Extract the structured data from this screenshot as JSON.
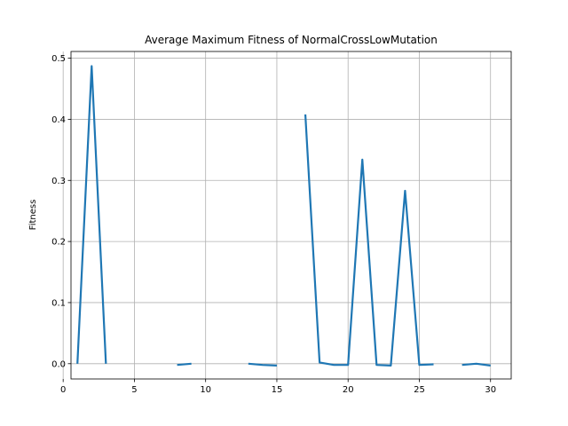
{
  "chart_data": {
    "type": "line",
    "title": "Average Maximum Fitness of NormalCrossLowMutation",
    "xlabel": "",
    "ylabel": "Fitness",
    "xlim": [
      0.55,
      31.45
    ],
    "ylim": [
      -0.025,
      0.511
    ],
    "xticks": [
      0,
      5,
      10,
      15,
      20,
      25,
      30
    ],
    "yticks": [
      0.0,
      0.1,
      0.2,
      0.3,
      0.4,
      0.5
    ],
    "ytick_labels": [
      "0.0",
      "0.1",
      "0.2",
      "0.3",
      "0.4",
      "0.5"
    ],
    "grid": true,
    "line_color": "#1f77b4",
    "series": [
      {
        "name": "",
        "segments": [
          [
            [
              1,
              0.0
            ],
            [
              2,
              0.487
            ],
            [
              3,
              0.0
            ]
          ],
          [
            [
              8,
              -0.002
            ],
            [
              9,
              0.0
            ]
          ],
          [
            [
              13,
              0.0
            ],
            [
              14,
              -0.002
            ],
            [
              15,
              -0.003
            ]
          ],
          [
            [
              17,
              0.408
            ],
            [
              18,
              0.002
            ],
            [
              19,
              -0.002
            ],
            [
              20,
              -0.002
            ],
            [
              21,
              0.334
            ],
            [
              22,
              -0.002
            ],
            [
              23,
              -0.003
            ],
            [
              24,
              0.283
            ],
            [
              25,
              -0.002
            ],
            [
              26,
              -0.001
            ]
          ],
          [
            [
              28,
              -0.002
            ],
            [
              29,
              0.0
            ],
            [
              30,
              -0.003
            ]
          ]
        ]
      }
    ]
  }
}
